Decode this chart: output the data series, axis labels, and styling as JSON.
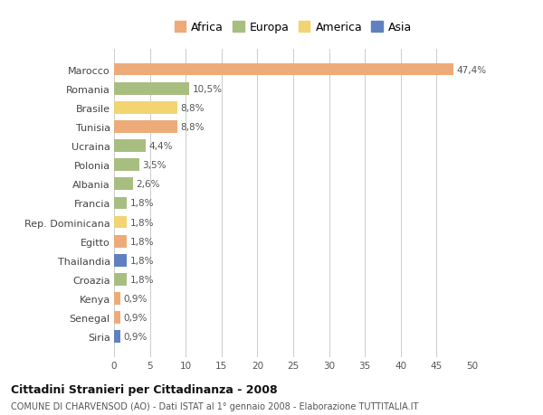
{
  "countries": [
    "Marocco",
    "Romania",
    "Brasile",
    "Tunisia",
    "Ucraina",
    "Polonia",
    "Albania",
    "Francia",
    "Rep. Dominicana",
    "Egitto",
    "Thailandia",
    "Croazia",
    "Kenya",
    "Senegal",
    "Siria"
  ],
  "values": [
    47.4,
    10.5,
    8.8,
    8.8,
    4.4,
    3.5,
    2.6,
    1.8,
    1.8,
    1.8,
    1.8,
    1.8,
    0.9,
    0.9,
    0.9
  ],
  "labels": [
    "47,4%",
    "10,5%",
    "8,8%",
    "8,8%",
    "4,4%",
    "3,5%",
    "2,6%",
    "1,8%",
    "1,8%",
    "1,8%",
    "1,8%",
    "1,8%",
    "0,9%",
    "0,9%",
    "0,9%"
  ],
  "continents": [
    "Africa",
    "Europa",
    "America",
    "Africa",
    "Europa",
    "Europa",
    "Europa",
    "Europa",
    "America",
    "Africa",
    "Asia",
    "Europa",
    "Africa",
    "Africa",
    "Asia"
  ],
  "colors": {
    "Africa": "#EDAB7A",
    "Europa": "#A8BE80",
    "America": "#F2D472",
    "Asia": "#6080C0"
  },
  "legend_items": [
    "Africa",
    "Europa",
    "America",
    "Asia"
  ],
  "legend_colors": [
    "#EDAB7A",
    "#A8BE80",
    "#F2D472",
    "#6080C0"
  ],
  "xlim": [
    0,
    50
  ],
  "xticks": [
    0,
    5,
    10,
    15,
    20,
    25,
    30,
    35,
    40,
    45,
    50
  ],
  "title": "Cittadini Stranieri per Cittadinanza - 2008",
  "subtitle": "COMUNE DI CHARVENSOD (AO) - Dati ISTAT al 1° gennaio 2008 - Elaborazione TUTTITALIA.IT",
  "bg_color": "#ffffff",
  "grid_color": "#cccccc"
}
